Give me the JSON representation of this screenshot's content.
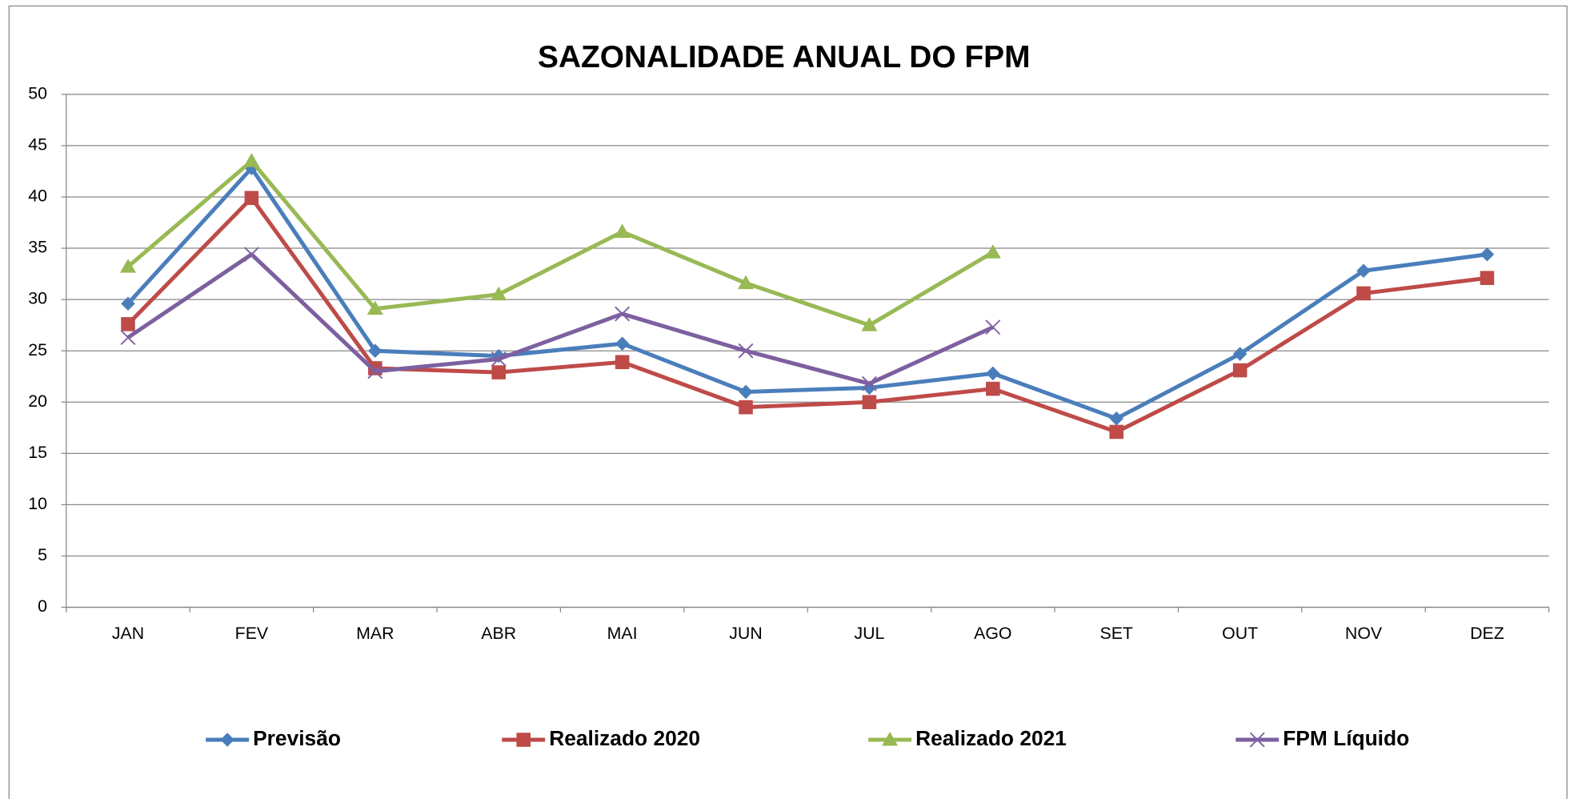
{
  "chart_data": {
    "type": "line",
    "title": "SAZONALIDADE  ANUAL DO FPM",
    "categories": [
      "JAN",
      "FEV",
      "MAR",
      "ABR",
      "MAI",
      "JUN",
      "JUL",
      "AGO",
      "SET",
      "OUT",
      "NOV",
      "DEZ"
    ],
    "series": [
      {
        "name": "Previsão",
        "color": "#4a7ebb",
        "marker": "diamond",
        "values": [
          29.6,
          42.8,
          25.0,
          24.5,
          25.7,
          21.0,
          21.4,
          22.8,
          18.4,
          24.7,
          32.8,
          34.4
        ]
      },
      {
        "name": "Realizado 2020",
        "color": "#be4b48",
        "marker": "square",
        "values": [
          27.6,
          39.9,
          23.3,
          22.9,
          23.9,
          19.5,
          20.0,
          21.3,
          17.1,
          23.1,
          30.6,
          32.1
        ]
      },
      {
        "name": "Realizado 2021",
        "color": "#98b954",
        "marker": "triangle",
        "values": [
          33.2,
          43.5,
          29.1,
          30.5,
          36.6,
          31.6,
          27.5,
          34.6,
          null,
          null,
          null,
          null
        ]
      },
      {
        "name": "FPM Líquido",
        "color": "#7d60a0",
        "marker": "x",
        "values": [
          26.3,
          34.4,
          23.0,
          24.2,
          28.6,
          25.0,
          21.8,
          27.3,
          null,
          null,
          null,
          null
        ]
      }
    ],
    "ylim": [
      0,
      50
    ],
    "yticks": [
      0,
      5,
      10,
      15,
      20,
      25,
      30,
      35,
      40,
      45,
      50
    ],
    "grid": true,
    "legend": "bottom"
  }
}
